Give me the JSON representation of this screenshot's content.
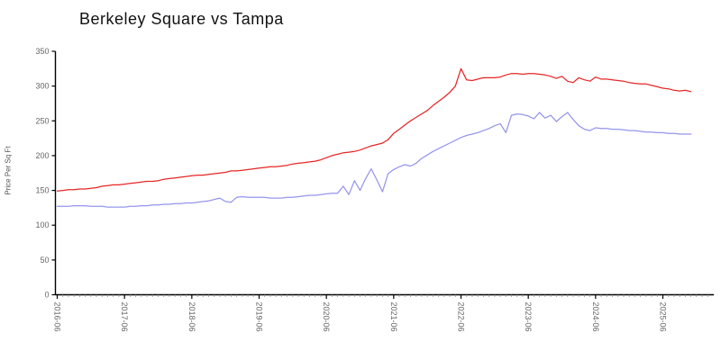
{
  "chart_data": {
    "type": "line",
    "title": "Berkeley Square vs Tampa",
    "xlabel": "",
    "ylabel": "Price Per Sq Ft",
    "ylim": [
      0,
      350
    ],
    "y_ticks": [
      0,
      50,
      100,
      150,
      200,
      250,
      300,
      350
    ],
    "x_start": "2016-06",
    "x_interval": "monthly",
    "x_tick_labels": [
      "2016-06",
      "2017-06",
      "2018-06",
      "2019-06",
      "2020-06",
      "2021-06",
      "2022-06",
      "2023-06",
      "2024-06",
      "2025-06"
    ],
    "grid": false,
    "legend_position": "none",
    "axis_color": "#000000",
    "tick_label_color": "#666666",
    "series": [
      {
        "name": "Berkeley Square",
        "color": "#e62626",
        "values": [
          149,
          150,
          151,
          151,
          152,
          152,
          153,
          154,
          156,
          157,
          158,
          158,
          159,
          160,
          161,
          162,
          163,
          163,
          164,
          166,
          167,
          168,
          169,
          170,
          171,
          172,
          172,
          173,
          174,
          175,
          176,
          178,
          178,
          179,
          180,
          181,
          182,
          183,
          184,
          184,
          185,
          186,
          188,
          189,
          190,
          191,
          192,
          194,
          197,
          200,
          202,
          204,
          205,
          206,
          208,
          211,
          214,
          216,
          218,
          223,
          232,
          238,
          244,
          250,
          255,
          260,
          265,
          272,
          278,
          284,
          291,
          300,
          325,
          309,
          308,
          310,
          312,
          312,
          312,
          313,
          316,
          318,
          318,
          317,
          318,
          318,
          317,
          316,
          314,
          311,
          314,
          307,
          305,
          312,
          309,
          307,
          313,
          310,
          310,
          309,
          308,
          307,
          305,
          304,
          303,
          303,
          301,
          299,
          297,
          296,
          294,
          293,
          294,
          292
        ]
      },
      {
        "name": "Tampa",
        "color": "#9595ec",
        "values": [
          127,
          127,
          127,
          128,
          128,
          128,
          127,
          127,
          127,
          126,
          126,
          126,
          126,
          127,
          127,
          128,
          128,
          129,
          129,
          130,
          130,
          131,
          131,
          132,
          132,
          133,
          134,
          135,
          137,
          139,
          134,
          133,
          140,
          141,
          140,
          140,
          140,
          140,
          139,
          139,
          139,
          140,
          140,
          141,
          142,
          143,
          143,
          144,
          145,
          146,
          146,
          156,
          144,
          164,
          150,
          167,
          181,
          165,
          148,
          174,
          180,
          184,
          187,
          185,
          189,
          196,
          201,
          206,
          210,
          214,
          218,
          222,
          226,
          229,
          231,
          233,
          236,
          239,
          243,
          246,
          233,
          258,
          260,
          259,
          257,
          253,
          262,
          254,
          258,
          249,
          256,
          262,
          252,
          243,
          238,
          236,
          240,
          239,
          239,
          238,
          238,
          237,
          236,
          236,
          235,
          234,
          234,
          233,
          233,
          232,
          232,
          231,
          231,
          231
        ]
      }
    ]
  }
}
